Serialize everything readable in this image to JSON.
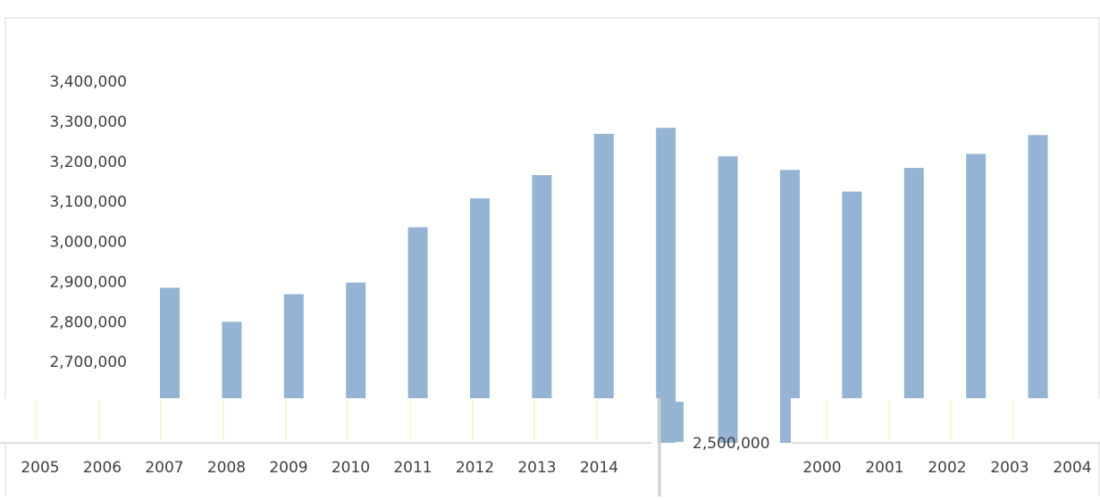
{
  "chart_data": {
    "type": "bar",
    "categories": [
      "2000",
      "2001",
      "2002",
      "2003",
      "2004",
      "2005",
      "2006",
      "2007",
      "2008",
      "2009",
      "2010",
      "2011",
      "2012",
      "2013",
      "2014"
    ],
    "values": [
      2887000,
      2802000,
      2871000,
      2900000,
      3038000,
      3110000,
      3168000,
      3271000,
      3286000,
      3215000,
      3181000,
      3127000,
      3186000,
      3221000,
      3268000
    ],
    "color": "#95b3d3",
    "ylim": [
      2500000,
      3400000
    ],
    "yticks": [
      {
        "value": 2500000,
        "label": "2,500,000"
      },
      {
        "value": 2700000,
        "label": "2,700,000"
      },
      {
        "value": 2800000,
        "label": "2,800,000"
      },
      {
        "value": 2900000,
        "label": "2,900,000"
      },
      {
        "value": 3000000,
        "label": "3,000,000"
      },
      {
        "value": 3100000,
        "label": "3,100,000"
      },
      {
        "value": 3200000,
        "label": "3,200,000"
      },
      {
        "value": 3300000,
        "label": "3,300,000"
      },
      {
        "value": 3400000,
        "label": "3,400,000"
      }
    ]
  }
}
